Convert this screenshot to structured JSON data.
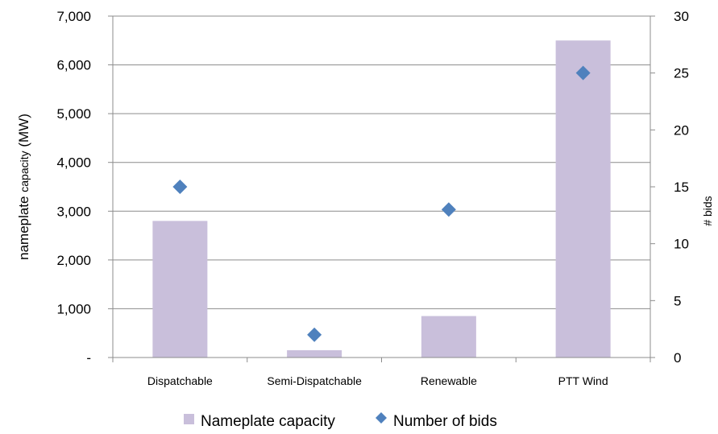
{
  "chart_data": {
    "type": "bar",
    "categories": [
      "Dispatchable",
      "Semi-Dispatchable",
      "Renewable",
      "PTT Wind"
    ],
    "series": [
      {
        "name": "Nameplate capacity",
        "kind": "bar",
        "axis": "left",
        "values": [
          2800,
          150,
          850,
          6500
        ],
        "color": "#c9bfdb"
      },
      {
        "name": "Number of bids",
        "kind": "marker",
        "axis": "right",
        "values": [
          15,
          2,
          13,
          25
        ],
        "color": "#4f81bd"
      }
    ],
    "left_axis": {
      "label_main": "nameplate",
      "label_small": "capacity",
      "label_unit": "(MW)",
      "ylim": [
        0,
        7000
      ],
      "ticks": [
        0,
        1000,
        2000,
        3000,
        4000,
        5000,
        6000,
        7000
      ],
      "tick_labels": [
        "-",
        "1,000",
        "2,000",
        "3,000",
        "4,000",
        "5,000",
        "6,000",
        "7,000"
      ]
    },
    "right_axis": {
      "label": "# bids",
      "ylim": [
        0,
        30
      ],
      "ticks": [
        0,
        5,
        10,
        15,
        20,
        25,
        30
      ],
      "tick_labels": [
        "0",
        "5",
        "10",
        "15",
        "20",
        "25",
        "30"
      ]
    },
    "grid": true,
    "legend_position": "bottom"
  }
}
